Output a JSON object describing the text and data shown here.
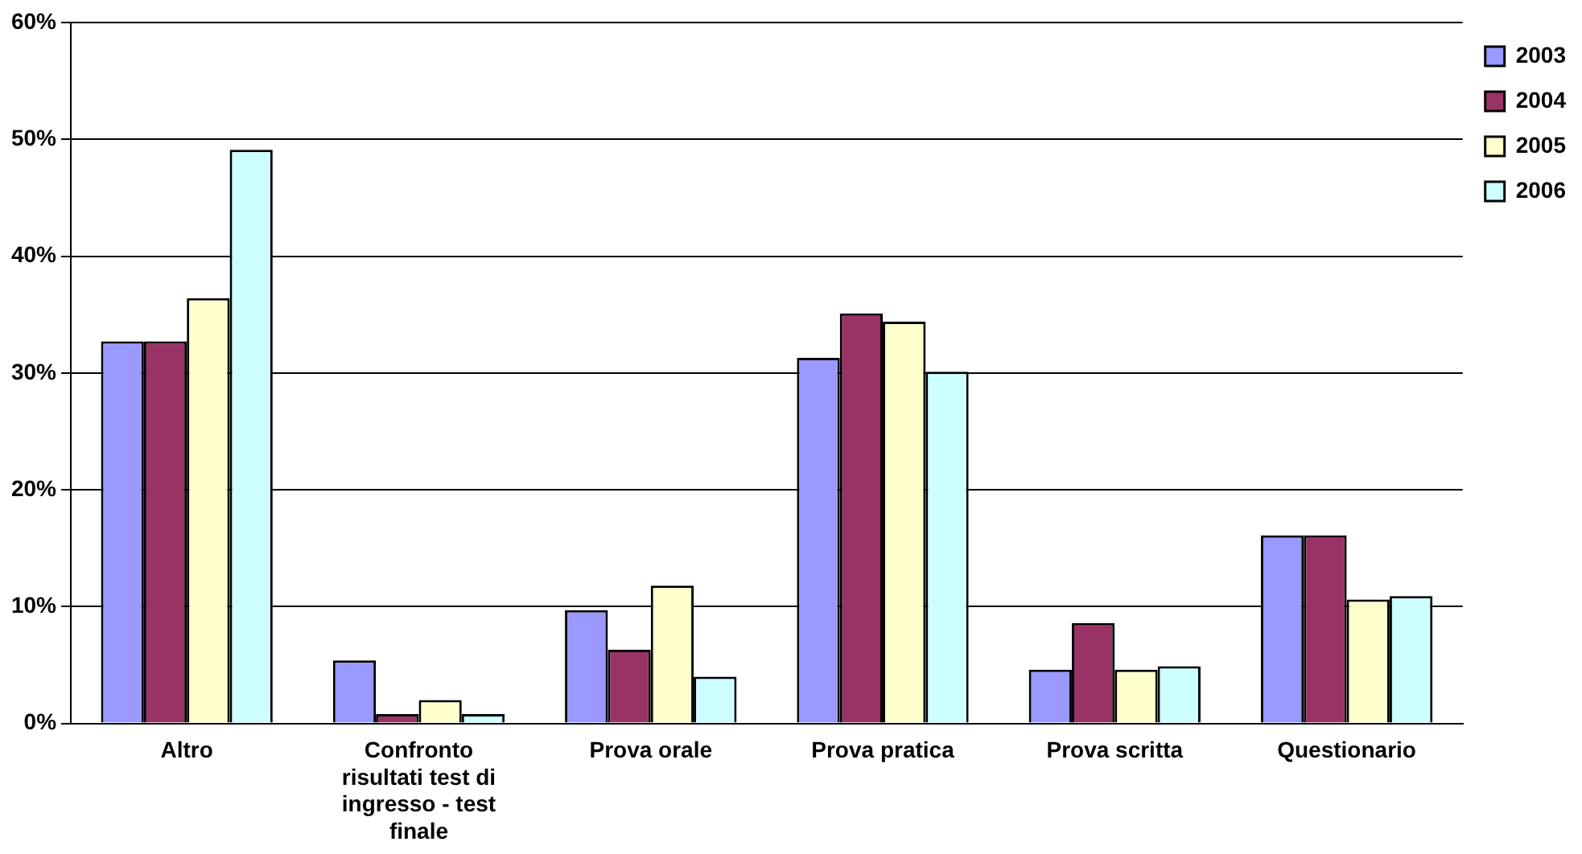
{
  "chart_data": {
    "type": "bar",
    "categories": [
      "Altro",
      "Confronto risultati test di ingresso - test finale",
      "Prova orale",
      "Prova pratica",
      "Prova scritta",
      "Questionario"
    ],
    "series": [
      {
        "name": "2003",
        "color": "#9999ff",
        "values": [
          32.7,
          5.4,
          9.7,
          31.3,
          4.6,
          16.1
        ]
      },
      {
        "name": "2004",
        "color": "#993366",
        "values": [
          32.7,
          0.8,
          6.3,
          35.1,
          8.6,
          16.1
        ]
      },
      {
        "name": "2005",
        "color": "#ffffcc",
        "values": [
          36.4,
          2.0,
          11.8,
          34.4,
          4.6,
          10.6
        ]
      },
      {
        "name": "2006",
        "color": "#ccffff",
        "values": [
          49.1,
          0.8,
          4.0,
          30.1,
          4.9,
          10.9
        ]
      }
    ],
    "ylim": [
      0,
      60
    ],
    "yticks": [
      {
        "value": 0,
        "label": "0%"
      },
      {
        "value": 10,
        "label": "10%"
      },
      {
        "value": 20,
        "label": "20%"
      },
      {
        "value": 30,
        "label": "30%"
      },
      {
        "value": 40,
        "label": "40%"
      },
      {
        "value": 50,
        "label": "50%"
      },
      {
        "value": 60,
        "label": "60%"
      }
    ],
    "grid": "y",
    "legend": "top right"
  }
}
